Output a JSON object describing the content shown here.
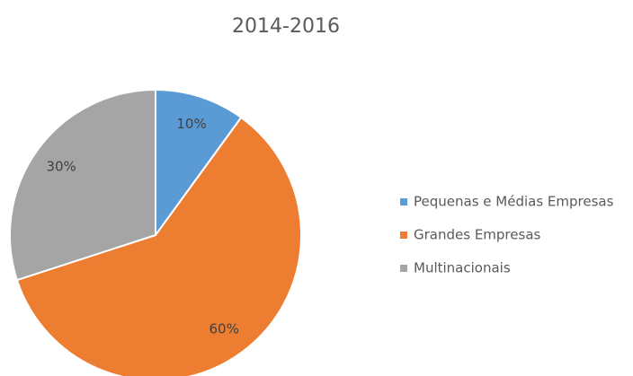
{
  "chart_data": {
    "type": "pie",
    "title": "2014-2016",
    "categories": [
      "Pequenas e Médias Empresas",
      "Grandes Empresas",
      "Multinacionais"
    ],
    "values": [
      10,
      60,
      30
    ],
    "value_labels": [
      "10%",
      "60%",
      "30%"
    ],
    "colors": [
      "#5b9bd5",
      "#ed7d31",
      "#a5a5a5"
    ],
    "legend": "right"
  }
}
